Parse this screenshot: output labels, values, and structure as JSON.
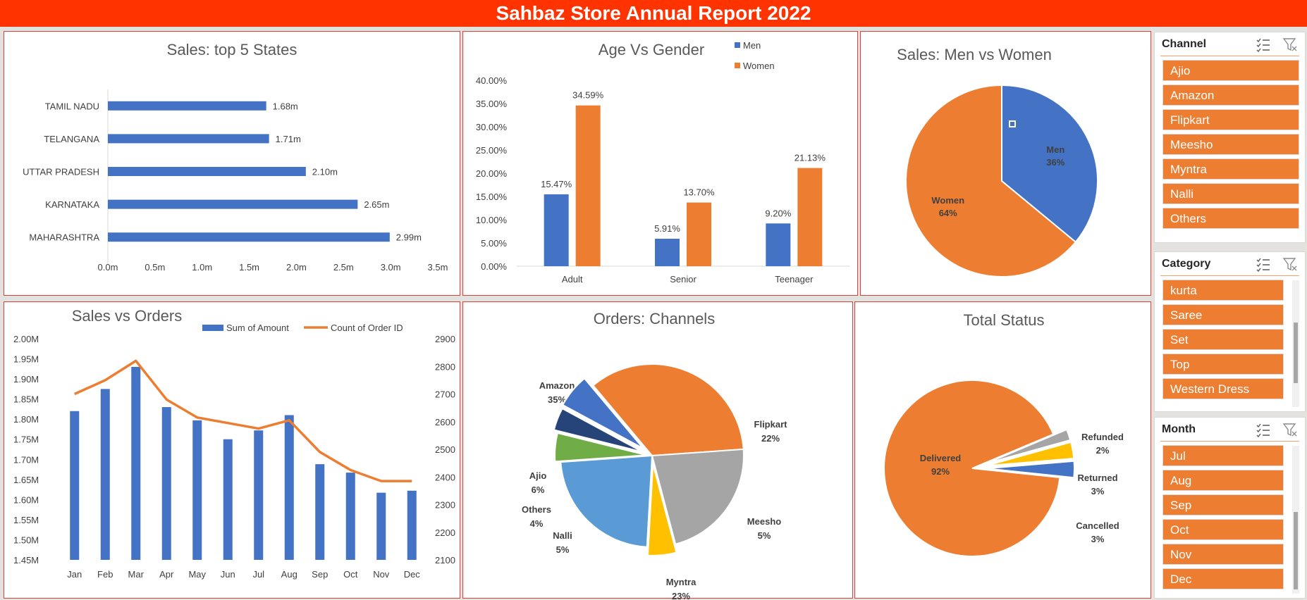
{
  "banner": {
    "title": "Sahbaz Store Annual Report 2022"
  },
  "colors": {
    "blue": "#4472c4",
    "orange": "#ed7d31",
    "gray": "#a5a5a5",
    "yellow": "#ffc000",
    "lightblue": "#5b9bd5",
    "green": "#70ad47",
    "navy": "#264478",
    "banner": "#ff3300"
  },
  "slicers": {
    "channel": {
      "title": "Channel",
      "items": [
        "Ajio",
        "Amazon",
        "Flipkart",
        "Meesho",
        "Myntra",
        "Nalli",
        "Others"
      ]
    },
    "category": {
      "title": "Category",
      "items": [
        "kurta",
        "Saree",
        "Set",
        "Top",
        "Western Dress"
      ]
    },
    "month": {
      "title": "Month",
      "items": [
        "Jul",
        "Aug",
        "Sep",
        "Oct",
        "Nov",
        "Dec"
      ]
    }
  },
  "chart_data": [
    {
      "id": "states",
      "type": "bar",
      "orientation": "horizontal",
      "title": "Sales: top 5 States",
      "categories": [
        "TAMIL NADU",
        "TELANGANA",
        "UTTAR PRADESH",
        "KARNATAKA",
        "MAHARASHTRA"
      ],
      "values": [
        1.68,
        1.71,
        2.1,
        2.65,
        2.99
      ],
      "data_labels": [
        "1.68m",
        "1.71m",
        "2.10m",
        "2.65m",
        "2.99m"
      ],
      "ticks": [
        "0.0m",
        "0.5m",
        "1.0m",
        "1.5m",
        "2.0m",
        "2.5m",
        "3.0m",
        "3.5m"
      ],
      "xlim": [
        0,
        3.5
      ]
    },
    {
      "id": "agegender",
      "type": "bar",
      "title": "Age Vs Gender",
      "categories": [
        "Adult",
        "Senior",
        "Teenager"
      ],
      "series": [
        {
          "name": "Men",
          "values": [
            15.47,
            5.91,
            9.2
          ],
          "labels": [
            "15.47%",
            "5.91%",
            "9.20%"
          ]
        },
        {
          "name": "Women",
          "values": [
            34.59,
            13.7,
            21.13
          ],
          "labels": [
            "34.59%",
            "13.70%",
            "21.13%"
          ]
        }
      ],
      "ticks": [
        "0.00%",
        "5.00%",
        "10.00%",
        "15.00%",
        "20.00%",
        "25.00%",
        "30.00%",
        "35.00%",
        "40.00%"
      ],
      "ylim": [
        0,
        40
      ],
      "legend": "top-right"
    },
    {
      "id": "menwomen",
      "type": "pie",
      "title": "Sales: Men vs Women",
      "slices": [
        {
          "name": "Men",
          "value": 36,
          "label": "36%"
        },
        {
          "name": "Women",
          "value": 64,
          "label": "64%"
        }
      ]
    },
    {
      "id": "salesorders",
      "type": "bar",
      "title": "Sales vs Orders",
      "categories": [
        "Jan",
        "Feb",
        "Mar",
        "Apr",
        "May",
        "Jun",
        "Jul",
        "Aug",
        "Sep",
        "Oct",
        "Nov",
        "Dec"
      ],
      "series": [
        {
          "name": "Sum of Amount",
          "type": "bar",
          "axis": "left",
          "values": [
            1.82,
            1.875,
            1.93,
            1.83,
            1.797,
            1.75,
            1.772,
            1.81,
            1.688,
            1.667,
            1.617,
            1.622
          ]
        },
        {
          "name": "Count of Order ID",
          "type": "line",
          "axis": "right",
          "values": [
            2700,
            2750,
            2820,
            2680,
            2615,
            2595,
            2575,
            2605,
            2490,
            2425,
            2385,
            2385
          ]
        }
      ],
      "left_ticks": [
        "1.45M",
        "1.50M",
        "1.55M",
        "1.60M",
        "1.65M",
        "1.70M",
        "1.75M",
        "1.80M",
        "1.85M",
        "1.90M",
        "1.95M",
        "2.00M"
      ],
      "right_ticks": [
        "2100",
        "2200",
        "2300",
        "2400",
        "2500",
        "2600",
        "2700",
        "2800",
        "2900"
      ],
      "ylim_left": [
        1.45,
        2.0
      ],
      "ylim_right": [
        2100,
        2900
      ],
      "legend": "top"
    },
    {
      "id": "channels",
      "type": "pie",
      "title": "Orders: Channels",
      "slices": [
        {
          "name": "Amazon",
          "value": 35,
          "label": "35%"
        },
        {
          "name": "Flipkart",
          "value": 22,
          "label": "22%"
        },
        {
          "name": "Meesho",
          "value": 5,
          "label": "5%"
        },
        {
          "name": "Myntra",
          "value": 23,
          "label": "23%"
        },
        {
          "name": "Nalli",
          "value": 5,
          "label": "5%"
        },
        {
          "name": "Others",
          "value": 4,
          "label": "4%"
        },
        {
          "name": "Ajio",
          "value": 6,
          "label": "6%"
        }
      ]
    },
    {
      "id": "status",
      "type": "pie",
      "title": "Total Status",
      "slices": [
        {
          "name": "Delivered",
          "value": 92,
          "label": "92%"
        },
        {
          "name": "Refunded",
          "value": 2,
          "label": "2%"
        },
        {
          "name": "Returned",
          "value": 3,
          "label": "3%"
        },
        {
          "name": "Cancelled",
          "value": 3,
          "label": "3%"
        }
      ]
    }
  ]
}
